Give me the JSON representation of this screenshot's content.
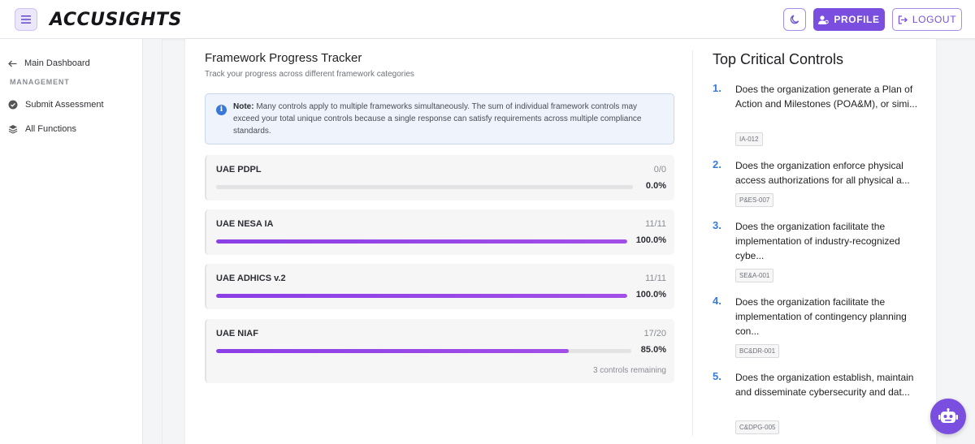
{
  "header": {
    "brand": "ACCUSIGHTS",
    "profile_label": "PROFILE",
    "logout_label": "LOGOUT",
    "menu_icon": "hamburger-icon",
    "theme_icon": "moon-icon"
  },
  "sidebar": {
    "back_label": "Main Dashboard",
    "section_heading": "MANAGEMENT",
    "items": [
      {
        "label": "Submit Assessment",
        "icon": "check-circle-icon"
      },
      {
        "label": "All Functions",
        "icon": "layers-icon"
      }
    ]
  },
  "tracker": {
    "title": "Framework Progress Tracker",
    "subtitle": "Track your progress across different framework categories",
    "note_label": "Note:",
    "note_text": "Many controls apply to multiple frameworks simultaneously. The sum of individual framework controls may exceed your total unique controls because a single response can satisfy requirements across multiple compliance standards.",
    "frameworks": [
      {
        "name": "UAE PDPL",
        "count": "0/0",
        "percent": "0.0%",
        "progress": 0.0,
        "remaining": ""
      },
      {
        "name": "UAE NESA IA",
        "count": "11/11",
        "percent": "100.0%",
        "progress": 1.0,
        "remaining": ""
      },
      {
        "name": "UAE ADHICS v.2",
        "count": "11/11",
        "percent": "100.0%",
        "progress": 1.0,
        "remaining": ""
      },
      {
        "name": "UAE NIAF",
        "count": "17/20",
        "percent": "85.0%",
        "progress": 0.85,
        "remaining": "3 controls remaining"
      }
    ]
  },
  "critical": {
    "title": "Top Critical Controls",
    "controls": [
      {
        "num": "1.",
        "text": "Does the organization generate a Plan of Action and Milestones (POA&M), or simi...",
        "tag": "IA-012"
      },
      {
        "num": "2.",
        "text": "Does the organization enforce physical access authorizations for all physical a...",
        "tag": "P&ES-007"
      },
      {
        "num": "3.",
        "text": "Does the organization facilitate the implementation of industry-recognized cybe...",
        "tag": "SE&A-001"
      },
      {
        "num": "4.",
        "text": "Does the organization facilitate the implementation of contingency planning con...",
        "tag": "BC&DR-001"
      },
      {
        "num": "5.",
        "text": "Does the organization establish, maintain and disseminate cybersecurity and dat...",
        "tag": "C&DPG-005"
      }
    ]
  },
  "colors": {
    "accent": "#7a4fe0",
    "progress": "#8b3fe6",
    "link_blue": "#3a7ad9"
  },
  "assistant_icon": "robot-icon"
}
